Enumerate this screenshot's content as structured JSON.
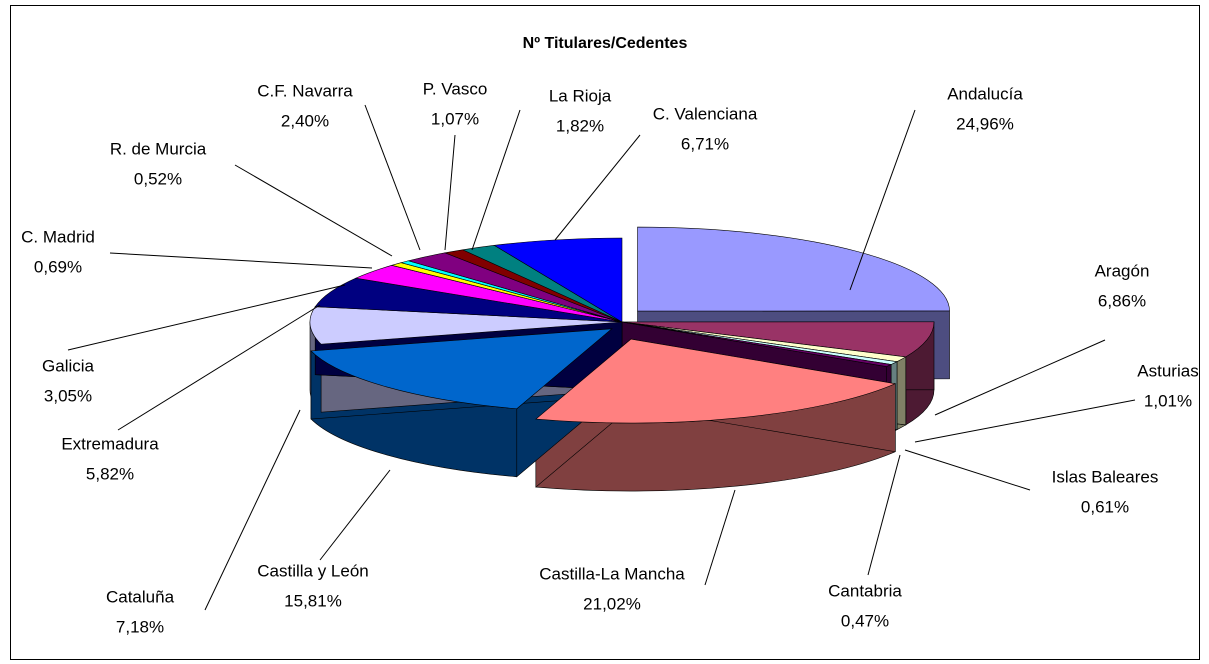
{
  "chart_data": {
    "type": "pie3d",
    "title": "Nº Titulares/Cedentes",
    "categories": [
      "Andalucía",
      "Aragón",
      "Asturias",
      "Islas Baleares",
      "Cantabria",
      "Castilla-La Mancha",
      "Castilla y León",
      "Cataluña",
      "Extremadura",
      "Galicia",
      "C. Madrid",
      "R. de Murcia",
      "C.F. Navarra",
      "P. Vasco",
      "La Rioja",
      "C. Valenciana"
    ],
    "values": [
      24.96,
      6.86,
      1.01,
      0.61,
      0.47,
      21.02,
      15.81,
      7.18,
      5.82,
      3.05,
      0.69,
      0.52,
      2.4,
      1.07,
      1.82,
      6.71
    ],
    "value_labels": [
      "24,96%",
      "6,86%",
      "1,01%",
      "0,61%",
      "0,47%",
      "21,02%",
      "15,81%",
      "7,18%",
      "5,82%",
      "3,05%",
      "0,69%",
      "0,52%",
      "2,40%",
      "1,07%",
      "1,82%",
      "6,71%"
    ],
    "colors": [
      "#9999ff",
      "#993366",
      "#ffffcc",
      "#ccffff",
      "#660066",
      "#ff8080",
      "#0066cc",
      "#ccccff",
      "#000080",
      "#ff00ff",
      "#ffff00",
      "#00ffff",
      "#800080",
      "#800000",
      "#008080",
      "#0000ff"
    ]
  }
}
